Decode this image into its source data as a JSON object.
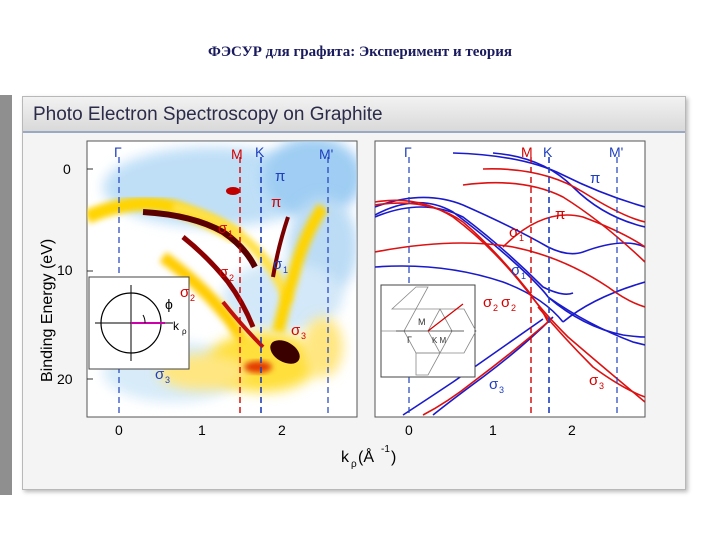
{
  "slide": {
    "title": "ФЭСУР для графита: Эксперимент и теория"
  },
  "panel": {
    "title": "Photo Electron Spectroscopy on Graphite"
  },
  "axes": {
    "ylabel": "Binding Energy (eV)",
    "xlabel_main": "k",
    "xlabel_sub": "ρ",
    "xlabel_unit_open": "(Å",
    "xlabel_unit_exp": "-1",
    "xlabel_unit_close": ")",
    "y_ticks": [
      "0",
      "10",
      "20"
    ],
    "x_ticks_left": [
      "0",
      "1",
      "2"
    ],
    "x_ticks_right": [
      "0",
      "1",
      "2"
    ]
  },
  "symmetry_points": {
    "gamma": "Γ",
    "m": "M",
    "k": "K",
    "m_prime": "M'"
  },
  "band_labels": {
    "pi": "π",
    "sigma1": "σ",
    "sigma1_sub": "1",
    "sigma2": "σ",
    "sigma2_sub": "2",
    "sigma3": "σ",
    "sigma3_sub": "3",
    "sigma2_sigma2": "σ2σ2"
  },
  "inset_left": {
    "phi": "ϕ",
    "k": "k",
    "k_sub": "ρ"
  },
  "inset_right": {
    "m": "M",
    "gamma": "Γ",
    "km": "K M"
  },
  "colors": {
    "theory_blue": "#1a1acc",
    "theory_red": "#dd1111",
    "line_red": "#d40000",
    "line_blue": "#1f3fbf",
    "heat_hot": "#5a0000",
    "heat_yellow": "#ffe800",
    "heat_blue": "#a9d3f5"
  }
}
